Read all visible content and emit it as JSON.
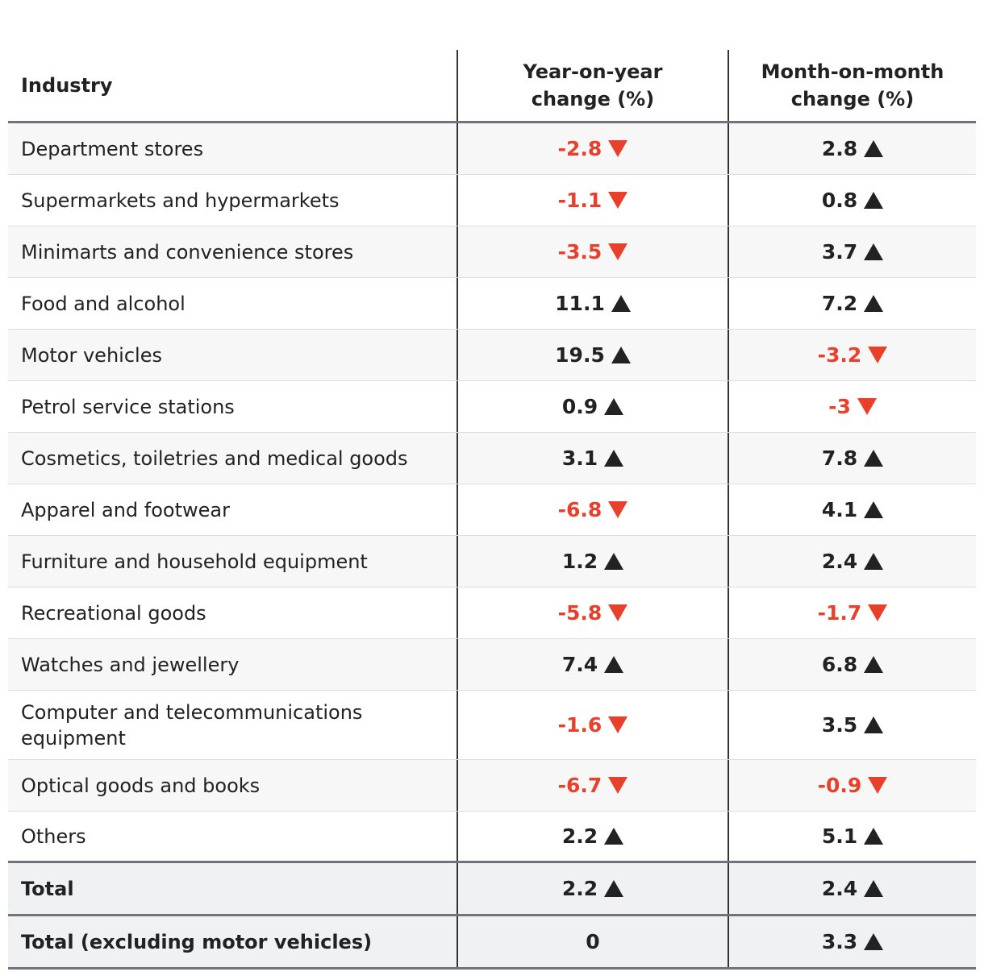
{
  "chart_data": {
    "type": "table",
    "columns": [
      "Industry",
      "Year-on-year change (%)",
      "Month-on-month change (%)"
    ],
    "rows": [
      {
        "industry": "Department stores",
        "yoy": "-2.8",
        "mom": "2.8"
      },
      {
        "industry": "Supermarkets and hypermarkets",
        "yoy": "-1.1",
        "mom": "0.8"
      },
      {
        "industry": "Minimarts and convenience stores",
        "yoy": "-3.5",
        "mom": "3.7"
      },
      {
        "industry": "Food and alcohol",
        "yoy": "11.1",
        "mom": "7.2"
      },
      {
        "industry": "Motor vehicles",
        "yoy": "19.5",
        "mom": "-3.2"
      },
      {
        "industry": "Petrol service stations",
        "yoy": "0.9",
        "mom": "-3"
      },
      {
        "industry": "Cosmetics, toiletries and medical goods",
        "yoy": "3.1",
        "mom": "7.8"
      },
      {
        "industry": "Apparel and footwear",
        "yoy": "-6.8",
        "mom": "4.1"
      },
      {
        "industry": "Furniture and household equipment",
        "yoy": "1.2",
        "mom": "2.4"
      },
      {
        "industry": "Recreational goods",
        "yoy": "-5.8",
        "mom": "-1.7"
      },
      {
        "industry": "Watches and jewellery",
        "yoy": "7.4",
        "mom": "6.8"
      },
      {
        "industry": "Computer and telecommunications equipment",
        "yoy": "-1.6",
        "mom": "3.5"
      },
      {
        "industry": "Optical goods and books",
        "yoy": "-6.7",
        "mom": "-0.9"
      },
      {
        "industry": "Others",
        "yoy": "2.2",
        "mom": "5.1"
      }
    ],
    "totals": [
      {
        "industry": "Total",
        "yoy": "2.2",
        "mom": "2.4"
      },
      {
        "industry": "Total (excluding motor vehicles)",
        "yoy": "0",
        "mom": "3.3"
      }
    ]
  },
  "header": {
    "industry": "Industry",
    "yoy_line1": "Year-on-year",
    "yoy_line2": "change (%)",
    "mom_line1": "Month-on-month",
    "mom_line2": "change (%)"
  },
  "colors": {
    "negative": "#e8402a",
    "positive": "#222222"
  }
}
